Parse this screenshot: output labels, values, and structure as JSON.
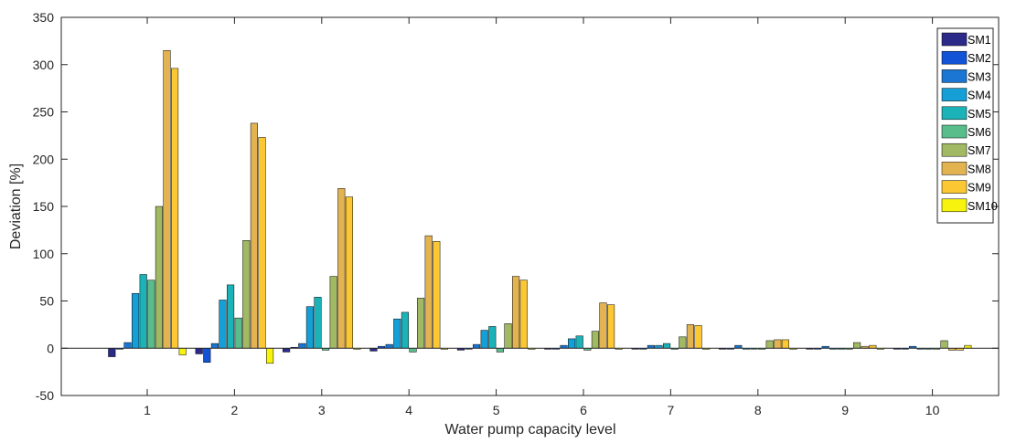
{
  "chart_data": {
    "type": "bar",
    "title": "",
    "xlabel": "Water pump capacity level",
    "ylabel": "Deviation [%]",
    "ylim": [
      -50,
      350
    ],
    "yticks": [
      -50,
      0,
      50,
      100,
      150,
      200,
      250,
      300,
      350
    ],
    "categories": [
      "1",
      "2",
      "3",
      "4",
      "5",
      "6",
      "7",
      "8",
      "9",
      "10"
    ],
    "grid": false,
    "legend_position": "top-right",
    "series": [
      {
        "name": "SM1",
        "color": "#2c2a89",
        "values": [
          -9,
          -6,
          -4,
          -3,
          -2,
          -1,
          -1,
          -1,
          -1,
          -1
        ]
      },
      {
        "name": "SM2",
        "color": "#1353d6",
        "values": [
          -1,
          -15,
          1,
          2,
          -1,
          -1,
          -1,
          -1,
          -1,
          -1
        ]
      },
      {
        "name": "SM3",
        "color": "#1a76d2",
        "values": [
          6,
          5,
          5,
          4,
          4,
          3,
          3,
          3,
          2,
          2
        ]
      },
      {
        "name": "SM4",
        "color": "#169fd6",
        "values": [
          58,
          51,
          44,
          31,
          19,
          10,
          3,
          -1,
          -1,
          -1
        ]
      },
      {
        "name": "SM5",
        "color": "#1cb3b8",
        "values": [
          78,
          67,
          54,
          38,
          23,
          13,
          5,
          0,
          -1,
          -1
        ]
      },
      {
        "name": "SM6",
        "color": "#58bd8a",
        "values": [
          72,
          32,
          -2,
          -4,
          -4,
          -2,
          -1,
          -1,
          -1,
          -1
        ]
      },
      {
        "name": "SM7",
        "color": "#a2b964",
        "values": [
          150,
          114,
          76,
          53,
          26,
          18,
          12,
          8,
          6,
          8
        ]
      },
      {
        "name": "SM8",
        "color": "#e3b352",
        "values": [
          315,
          238,
          169,
          119,
          76,
          48,
          25,
          9,
          2,
          -2
        ]
      },
      {
        "name": "SM9",
        "color": "#fbc733",
        "values": [
          296,
          223,
          160,
          113,
          72,
          46,
          24,
          9,
          3,
          -2
        ]
      },
      {
        "name": "SM10",
        "color": "#f7f20e",
        "values": [
          -7,
          -16,
          -1,
          -1,
          -1,
          -1,
          -1,
          -1,
          -1,
          3
        ]
      }
    ]
  }
}
